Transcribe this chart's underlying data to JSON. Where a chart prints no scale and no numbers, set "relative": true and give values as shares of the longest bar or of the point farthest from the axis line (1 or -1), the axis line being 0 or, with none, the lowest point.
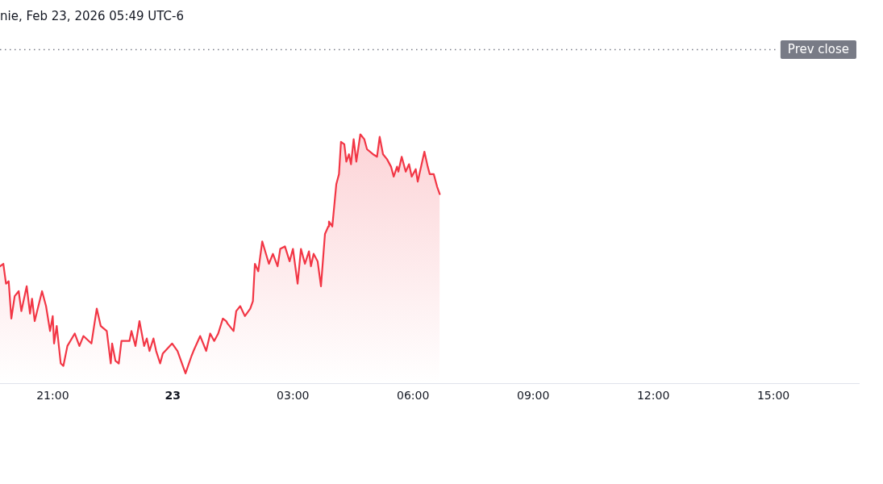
{
  "chart_data": {
    "type": "area",
    "title": "nie, Feb 23, 2026 05:49 UTC-6",
    "relative": true,
    "color": "#f23645",
    "x": [
      "2026-02-22T19:41",
      "2026-02-22T19:46",
      "2026-02-22T19:50",
      "2026-02-22T19:54",
      "2026-02-22T19:58",
      "2026-02-22T20:03",
      "2026-02-22T20:09",
      "2026-02-22T20:13",
      "2026-02-22T20:21",
      "2026-02-22T20:26",
      "2026-02-22T20:29",
      "2026-02-22T20:33",
      "2026-02-22T20:44",
      "2026-02-22T20:50",
      "2026-02-22T20:56",
      "2026-02-22T21:00",
      "2026-02-22T21:02",
      "2026-02-22T21:06",
      "2026-02-22T21:12",
      "2026-02-22T21:16",
      "2026-02-22T21:22",
      "2026-02-22T21:33",
      "2026-02-22T21:40",
      "2026-02-22T21:46",
      "2026-02-22T21:58",
      "2026-02-22T22:06",
      "2026-02-22T22:12",
      "2026-02-22T22:21",
      "2026-02-22T22:27",
      "2026-02-22T22:29",
      "2026-02-22T22:34",
      "2026-02-22T22:39",
      "2026-02-22T22:43",
      "2026-02-22T22:55",
      "2026-02-22T22:58",
      "2026-02-22T23:04",
      "2026-02-22T23:10",
      "2026-02-22T23:17",
      "2026-02-22T23:21",
      "2026-02-22T23:25",
      "2026-02-22T23:31",
      "2026-02-22T23:35",
      "2026-02-22T23:41",
      "2026-02-22T23:45",
      "2026-02-22T23:59",
      "2026-02-23T00:07",
      "2026-02-23T00:19",
      "2026-02-23T00:28",
      "2026-02-23T00:31",
      "2026-02-23T00:41",
      "2026-02-23T00:50",
      "2026-02-23T00:56",
      "2026-02-23T01:02",
      "2026-02-23T01:08",
      "2026-02-23T01:15",
      "2026-02-23T01:20",
      "2026-02-23T01:22",
      "2026-02-23T01:31",
      "2026-02-23T01:35",
      "2026-02-23T01:41",
      "2026-02-23T01:48",
      "2026-02-23T01:56",
      "2026-02-23T02:00",
      "2026-02-23T02:03",
      "2026-02-23T02:08",
      "2026-02-23T02:14",
      "2026-02-23T02:24",
      "2026-02-23T02:30",
      "2026-02-23T02:37",
      "2026-02-23T02:41",
      "2026-02-23T02:48",
      "2026-02-23T02:55",
      "2026-02-23T03:00",
      "2026-02-23T03:07",
      "2026-02-23T03:12",
      "2026-02-23T03:18",
      "2026-02-23T03:24",
      "2026-02-23T03:27",
      "2026-02-23T03:31",
      "2026-02-23T03:37",
      "2026-02-23T03:42",
      "2026-02-23T03:48",
      "2026-02-23T03:53",
      "2026-02-23T03:54",
      "2026-02-23T03:59",
      "2026-02-23T04:05",
      "2026-02-23T04:09",
      "2026-02-23T04:12",
      "2026-02-23T04:17",
      "2026-02-23T04:20",
      "2026-02-23T04:24",
      "2026-02-23T04:27",
      "2026-02-23T04:31",
      "2026-02-23T04:35",
      "2026-02-23T04:41",
      "2026-02-23T04:47",
      "2026-02-23T04:51",
      "2026-02-23T05:00",
      "2026-02-23T05:06",
      "2026-02-23T05:10",
      "2026-02-23T05:15",
      "2026-02-23T05:21",
      "2026-02-23T05:27",
      "2026-02-23T05:31",
      "2026-02-23T05:36",
      "2026-02-23T05:38",
      "2026-02-23T05:43",
      "2026-02-23T05:49",
      "2026-02-23T05:54",
      "2026-02-23T05:58",
      "2026-02-23T06:04",
      "2026-02-23T06:07",
      "2026-02-23T06:17",
      "2026-02-23T06:22",
      "2026-02-23T06:25",
      "2026-02-23T06:31",
      "2026-02-23T06:36",
      "2026-02-23T06:40"
    ],
    "values": [
      0.47,
      0.48,
      0.4,
      0.41,
      0.26,
      0.35,
      0.37,
      0.29,
      0.39,
      0.28,
      0.34,
      0.25,
      0.37,
      0.31,
      0.21,
      0.27,
      0.16,
      0.23,
      0.08,
      0.07,
      0.15,
      0.2,
      0.15,
      0.19,
      0.16,
      0.3,
      0.23,
      0.21,
      0.08,
      0.16,
      0.09,
      0.08,
      0.17,
      0.17,
      0.21,
      0.15,
      0.25,
      0.15,
      0.18,
      0.13,
      0.18,
      0.13,
      0.08,
      0.12,
      0.16,
      0.13,
      0.04,
      0.11,
      0.13,
      0.19,
      0.13,
      0.2,
      0.17,
      0.2,
      0.26,
      0.25,
      0.24,
      0.21,
      0.29,
      0.31,
      0.27,
      0.3,
      0.33,
      0.48,
      0.45,
      0.57,
      0.48,
      0.52,
      0.47,
      0.54,
      0.55,
      0.49,
      0.54,
      0.4,
      0.54,
      0.48,
      0.53,
      0.47,
      0.52,
      0.49,
      0.39,
      0.6,
      0.63,
      0.65,
      0.63,
      0.8,
      0.84,
      0.97,
      0.96,
      0.89,
      0.92,
      0.88,
      0.98,
      0.89,
      1.0,
      0.98,
      0.94,
      0.92,
      0.91,
      0.99,
      0.92,
      0.9,
      0.87,
      0.83,
      0.87,
      0.85,
      0.91,
      0.85,
      0.88,
      0.83,
      0.86,
      0.81,
      0.93,
      0.87,
      0.84,
      0.84,
      0.79,
      0.76
    ],
    "xlim": [
      "2026-02-22T19:41",
      "2026-02-23T17:08"
    ],
    "xticks": [
      {
        "value": "2026-02-22T21:00",
        "label": "21:00"
      },
      {
        "value": "2026-02-23T00:00",
        "label": "23"
      },
      {
        "value": "2026-02-23T03:00",
        "label": "03:00"
      },
      {
        "value": "2026-02-23T06:00",
        "label": "06:00"
      },
      {
        "value": "2026-02-23T09:00",
        "label": "09:00"
      },
      {
        "value": "2026-02-23T12:00",
        "label": "12:00"
      },
      {
        "value": "2026-02-23T15:00",
        "label": "15:00"
      }
    ],
    "ref_lines": [
      {
        "axis": "y",
        "value": 1.34,
        "label": "Prev close",
        "color": "#787b86",
        "line_style": "dotted"
      }
    ]
  }
}
